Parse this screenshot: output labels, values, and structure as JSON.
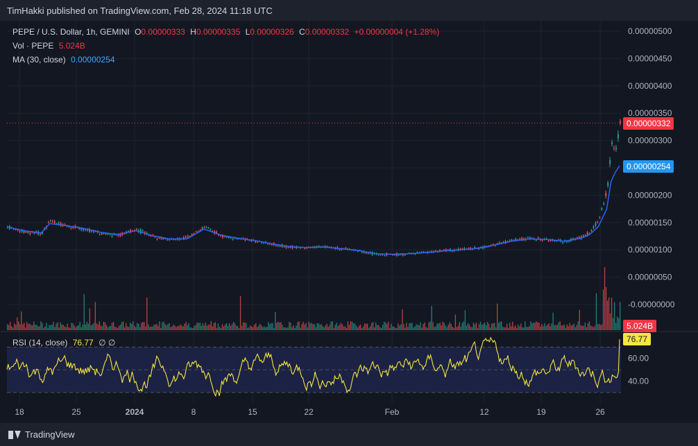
{
  "header": {
    "publisher": "TimHakki published on TradingView.com, Feb 28, 2024 11:18 UTC"
  },
  "legend": {
    "symbol": "PEPE / U.S. Dollar, 1h, GEMINI",
    "o_label": "O",
    "o_value": "0.00000333",
    "h_label": "H",
    "h_value": "0.00000335",
    "l_label": "L",
    "l_value": "0.00000326",
    "c_label": "C",
    "c_value": "0.00000332",
    "change": "+0.00000004 (+1.28%)",
    "vol_label": "Vol · PEPE",
    "vol_value": "5.024B",
    "ma_label": "MA (30, close)",
    "ma_value": "0.00000254"
  },
  "rsi_legend": {
    "label": "RSI (14, close)",
    "value": "76.77",
    "extra": "∅  ∅"
  },
  "footer": {
    "brand": "TradingView"
  },
  "colors": {
    "up": "#26a69a",
    "down": "#ef5350",
    "ma": "#2962ff",
    "rsi": "#f5e642",
    "price_tag": "#f23645",
    "ma_tag": "#2196f3"
  },
  "chart_data": {
    "type": "line",
    "title": "PEPE / U.S. Dollar, 1h, GEMINI",
    "x_ticks": [
      "18",
      "25",
      "2024",
      "8",
      "15",
      "22",
      "Feb",
      "12",
      "19",
      "26"
    ],
    "y_ticks": [
      "0.00000500",
      "0.00000450",
      "0.00000400",
      "0.00000350",
      "0.00000300",
      "0.00000250",
      "0.00000200",
      "0.00000150",
      "0.00000100",
      "0.00000050",
      "-0.00000000"
    ],
    "price_axis_values": [
      5e-06,
      4.5e-06,
      4e-06,
      3.5e-06,
      3e-06,
      2.5e-06,
      2e-06,
      1.5e-06,
      1e-06,
      5e-07,
      0
    ],
    "ylim": [
      -1e-07,
      5.4e-06
    ],
    "price_series_day_offsets": [
      0,
      2,
      4,
      5,
      7,
      9,
      11,
      13,
      15,
      17,
      19,
      21,
      23,
      25,
      27,
      29,
      31,
      33,
      35,
      37,
      39,
      41,
      43,
      45,
      47,
      49,
      51,
      53,
      55,
      57,
      59,
      61,
      63,
      65,
      67,
      68,
      69,
      70,
      70.5,
      71,
      71.5
    ],
    "price_series": [
      1.42e-06,
      1.33e-06,
      1.3e-06,
      1.53e-06,
      1.43e-06,
      1.38e-06,
      1.3e-06,
      1.26e-06,
      1.38e-06,
      1.24e-06,
      1.18e-06,
      1.22e-06,
      1.43e-06,
      1.25e-06,
      1.2e-06,
      1.16e-06,
      1.1e-06,
      1.05e-06,
      1.04e-06,
      1.06e-06,
      1.02e-06,
      9.8e-07,
      9.2e-07,
      9.1e-07,
      9.3e-07,
      9.6e-07,
      9.9e-07,
      1.01e-06,
      1.03e-06,
      1.1e-06,
      1.18e-06,
      1.21e-06,
      1.19e-06,
      1.15e-06,
      1.23e-06,
      1.32e-06,
      1.55e-06,
      2.1e-06,
      2.95e-06,
      2.8e-06,
      3.32e-06
    ],
    "ma_series": [
      1.42e-06,
      1.35e-06,
      1.31e-06,
      1.48e-06,
      1.44e-06,
      1.39e-06,
      1.32e-06,
      1.28e-06,
      1.35e-06,
      1.26e-06,
      1.2e-06,
      1.2e-06,
      1.38e-06,
      1.27e-06,
      1.21e-06,
      1.17e-06,
      1.11e-06,
      1.06e-06,
      1.04e-06,
      1.05e-06,
      1.02e-06,
      9.9e-07,
      9.3e-07,
      9.2e-07,
      9.3e-07,
      9.5e-07,
      9.8e-07,
      1e-06,
      1.03e-06,
      1.09e-06,
      1.16e-06,
      1.2e-06,
      1.19e-06,
      1.16e-06,
      1.21e-06,
      1.28e-06,
      1.42e-06,
      1.75e-06,
      2.25e-06,
      2.42e-06,
      2.54e-06
    ],
    "last_price": "0.00000332",
    "ma_last": "0.00000254",
    "volume_last": "5.024B",
    "rsi_ticks": [
      "60.00",
      "40.00"
    ],
    "rsi_tick_values": [
      60,
      40
    ],
    "rsi_levels": [
      70,
      30
    ],
    "rsi_ylim": [
      25,
      80
    ],
    "rsi_last": "76.77"
  }
}
